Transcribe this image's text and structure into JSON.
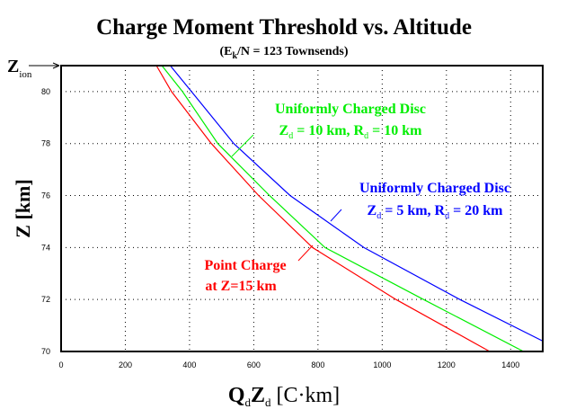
{
  "chart_data": {
    "type": "line",
    "title": "Charge Moment Threshold  vs.  Altitude",
    "subtitle": {
      "pre": "(E",
      "sub": "k",
      "post": "/N = 123 Townsends)"
    },
    "xlabel": {
      "q": "Q",
      "qsub": "d",
      "z": "Z",
      "zsub": "d",
      "unit": " [C·km]"
    },
    "ylabel": "Z [km]",
    "zion_label": {
      "main": "Z",
      "sub": "ion"
    },
    "xlim": [
      0,
      1500
    ],
    "ylim": [
      70,
      81
    ],
    "xticks": [
      0,
      200,
      400,
      600,
      800,
      1000,
      1200,
      1400
    ],
    "yticks": [
      70,
      72,
      74,
      76,
      78,
      80
    ],
    "grid": true,
    "series": [
      {
        "color": "#ff0000",
        "x": [
          297,
          344,
          468,
          615,
          783,
          1043,
          1335
        ],
        "y": [
          81,
          80,
          78,
          76,
          74,
          72,
          70
        ]
      },
      {
        "color": "#00ee00",
        "x": [
          314,
          378,
          488,
          649,
          822,
          1129,
          1440
        ],
        "y": [
          81,
          80,
          78,
          76,
          74,
          72,
          70
        ]
      },
      {
        "color": "#0000ff",
        "x": [
          340,
          406,
          538,
          713,
          943,
          1242,
          1500
        ],
        "y": [
          81,
          80,
          78,
          76,
          74,
          72,
          70.4
        ]
      }
    ],
    "annotations": {
      "green": {
        "line1": "Uniformly Charged Disc",
        "z": "Z",
        "zsub": "d",
        "mid": " = 10 km,  R",
        "rsub": "d",
        "end": " = 10 km",
        "color": "#00ee00"
      },
      "blue": {
        "line1": "Uniformly Charged Disc",
        "z": "Z",
        "zsub": "d",
        "mid": " =  5 km,   R",
        "rsub": "d",
        "end": " = 20 km",
        "color": "#0000ff"
      },
      "red": {
        "line1": "Point Charge",
        "line2": "at Z=15 km",
        "color": "#ff0000"
      }
    }
  }
}
